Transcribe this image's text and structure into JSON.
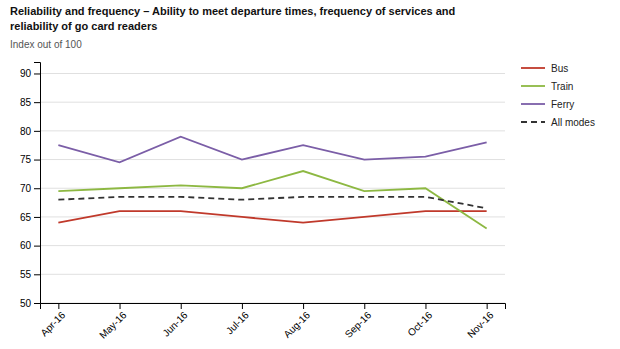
{
  "chart_data": {
    "type": "line",
    "title": [
      "Reliability and frequency – Ability to meet departure times, frequency of services and",
      "reliability of go card readers"
    ],
    "subtitle": "Index out of 100",
    "categories": [
      "Apr-16",
      "May-16",
      "Jun-16",
      "Jul-16",
      "Aug-16",
      "Sep-16",
      "Oct-16",
      "Nov-16"
    ],
    "series": [
      {
        "name": "Bus",
        "color": "#c0392b",
        "line_style": "solid",
        "values": [
          64,
          66,
          66,
          65,
          64,
          65,
          66,
          66
        ]
      },
      {
        "name": "Train",
        "color": "#8db842",
        "line_style": "solid",
        "values": [
          69.5,
          70,
          70.5,
          70,
          73,
          69.5,
          70,
          63
        ]
      },
      {
        "name": "Ferry",
        "color": "#7b5ea7",
        "line_style": "solid",
        "values": [
          77.5,
          74.5,
          79,
          75,
          77.5,
          75,
          75.5,
          78
        ]
      },
      {
        "name": "All modes",
        "color": "#333333",
        "line_style": "dashed",
        "values": [
          68,
          68.5,
          68.5,
          68,
          68.5,
          68.5,
          68.5,
          66.5
        ]
      }
    ],
    "ylim": [
      50,
      92
    ],
    "yticks": [
      50,
      55,
      60,
      65,
      70,
      75,
      80,
      85,
      90
    ],
    "grid": true,
    "legend": "right"
  }
}
